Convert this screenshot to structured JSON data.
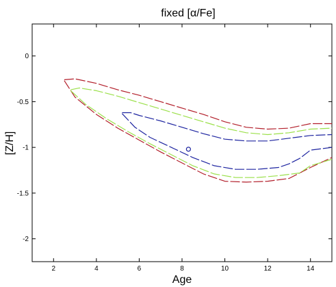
{
  "chart_data": {
    "type": "line",
    "title": "fixed [α/Fe]",
    "xlabel": "Age",
    "ylabel": "[Z/H]",
    "xlim": [
      1.0,
      15.0
    ],
    "ylim": [
      -2.25,
      0.35
    ],
    "xticks": [
      2,
      4,
      6,
      8,
      10,
      12,
      14
    ],
    "yticks": [
      0,
      -0.5,
      -1,
      -1.5,
      -2
    ],
    "ytick_labels": [
      "0",
      "-0.5",
      "-1",
      "-1.5",
      "-2"
    ],
    "grid": false,
    "colors": {
      "outer": "#b21e2a",
      "middle": "#9be04a",
      "inner": "#1d24a0",
      "marker": "#1d24a0"
    },
    "series": [
      {
        "style": "dashed",
        "color": "#b21e2a",
        "upper": {
          "x": [
            2.5,
            3.0,
            4.0,
            5.0,
            6.0,
            7.0,
            8.0,
            9.0,
            10.0,
            11.0,
            12.0,
            13.0,
            14.0,
            15.0
          ],
          "y": [
            -0.26,
            -0.25,
            -0.3,
            -0.37,
            -0.43,
            -0.5,
            -0.57,
            -0.64,
            -0.72,
            -0.78,
            -0.8,
            -0.79,
            -0.74,
            -0.74
          ]
        },
        "lower": {
          "x": [
            2.5,
            3.0,
            4.0,
            5.0,
            6.0,
            7.0,
            8.0,
            9.0,
            10.0,
            11.0,
            12.0,
            13.0,
            14.0,
            15.0
          ],
          "y": [
            -0.27,
            -0.45,
            -0.64,
            -0.79,
            -0.92,
            -1.05,
            -1.17,
            -1.29,
            -1.37,
            -1.38,
            -1.37,
            -1.34,
            -1.22,
            -1.11
          ]
        }
      },
      {
        "style": "dashed",
        "color": "#9be04a",
        "upper": {
          "x": [
            2.8,
            3.2,
            4.0,
            5.0,
            6.0,
            7.0,
            8.0,
            9.0,
            10.0,
            11.0,
            12.0,
            13.0,
            14.0,
            15.0
          ],
          "y": [
            -0.37,
            -0.35,
            -0.38,
            -0.44,
            -0.51,
            -0.58,
            -0.65,
            -0.72,
            -0.79,
            -0.84,
            -0.86,
            -0.84,
            -0.8,
            -0.79
          ]
        },
        "lower": {
          "x": [
            2.8,
            3.5,
            4.5,
            5.5,
            6.5,
            7.5,
            8.5,
            9.5,
            10.5,
            11.5,
            12.5,
            13.5,
            14.0,
            15.0
          ],
          "y": [
            -0.38,
            -0.53,
            -0.69,
            -0.83,
            -0.96,
            -1.08,
            -1.2,
            -1.29,
            -1.33,
            -1.33,
            -1.31,
            -1.28,
            -1.2,
            -1.13
          ]
        }
      },
      {
        "style": "dashed",
        "color": "#1d24a0",
        "upper": {
          "x": [
            5.2,
            5.6,
            6.0,
            7.0,
            8.0,
            9.0,
            10.0,
            11.0,
            12.0,
            13.0,
            14.0,
            15.0
          ],
          "y": [
            -0.62,
            -0.62,
            -0.65,
            -0.71,
            -0.78,
            -0.85,
            -0.91,
            -0.93,
            -0.93,
            -0.9,
            -0.87,
            -0.86
          ]
        },
        "lower": {
          "x": [
            5.2,
            5.8,
            6.5,
            7.5,
            8.5,
            9.5,
            10.5,
            11.5,
            12.5,
            13.0,
            13.5,
            14.0,
            15.0
          ],
          "y": [
            -0.63,
            -0.78,
            -0.89,
            -1.0,
            -1.11,
            -1.2,
            -1.24,
            -1.24,
            -1.22,
            -1.18,
            -1.12,
            -1.03,
            -1.0
          ]
        }
      }
    ],
    "marker": {
      "x": 8.3,
      "y": -1.02,
      "shape": "circle"
    }
  }
}
